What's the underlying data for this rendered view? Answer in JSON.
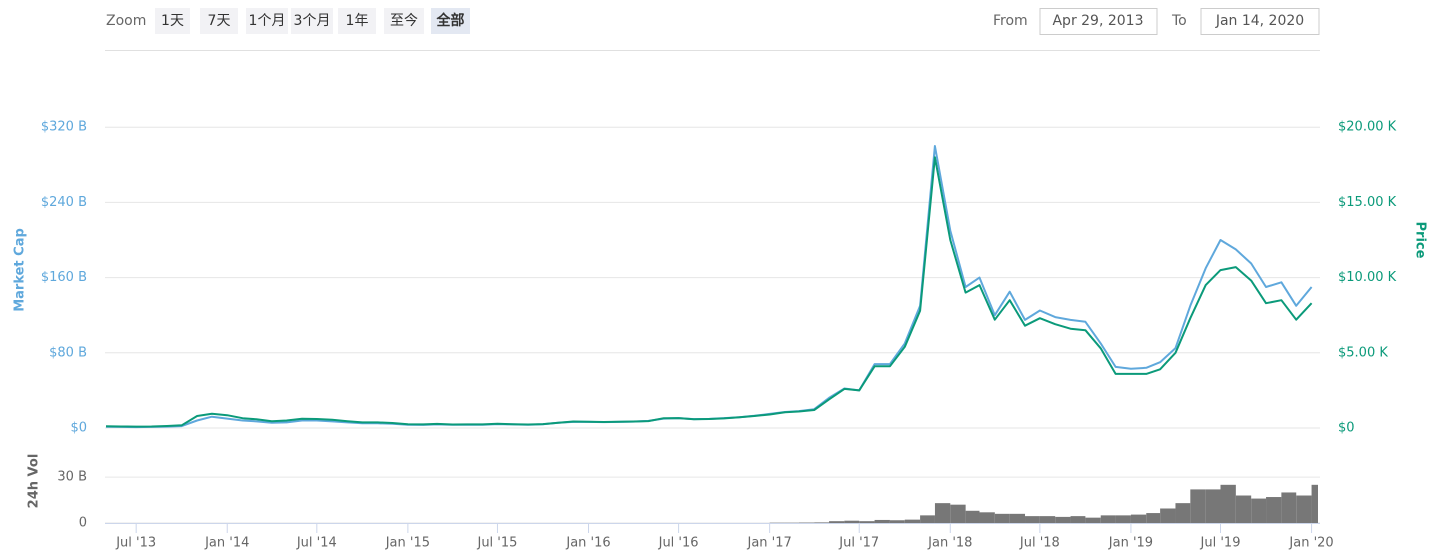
{
  "toolbar": {
    "zoom_label": "Zoom",
    "buttons": [
      "1天",
      "7天",
      "1个月",
      "3个月",
      "1年",
      "至今",
      "全部"
    ],
    "active": 6,
    "from_label": "From",
    "from": "Apr 29, 2013",
    "to_label": "To",
    "to": "Jan 14, 2020"
  },
  "chart_data": [
    {
      "type": "line",
      "ylabel": "Market Cap",
      "y2label": "Price",
      "xlim": [
        "2013-04-29",
        "2020-01-14"
      ],
      "x": [
        "2013-05",
        "2013-06",
        "2013-07",
        "2013-08",
        "2013-09",
        "2013-10",
        "2013-11",
        "2013-12",
        "2014-01",
        "2014-02",
        "2014-03",
        "2014-04",
        "2014-05",
        "2014-06",
        "2014-07",
        "2014-08",
        "2014-09",
        "2014-10",
        "2014-11",
        "2014-12",
        "2015-01",
        "2015-02",
        "2015-03",
        "2015-04",
        "2015-05",
        "2015-06",
        "2015-07",
        "2015-08",
        "2015-09",
        "2015-10",
        "2015-11",
        "2015-12",
        "2016-01",
        "2016-02",
        "2016-03",
        "2016-04",
        "2016-05",
        "2016-06",
        "2016-07",
        "2016-08",
        "2016-09",
        "2016-10",
        "2016-11",
        "2016-12",
        "2017-01",
        "2017-02",
        "2017-03",
        "2017-04",
        "2017-05",
        "2017-06",
        "2017-07",
        "2017-08",
        "2017-09",
        "2017-10",
        "2017-11",
        "2017-12",
        "2018-01",
        "2018-02",
        "2018-03",
        "2018-04",
        "2018-05",
        "2018-06",
        "2018-07",
        "2018-08",
        "2018-09",
        "2018-10",
        "2018-11",
        "2018-12",
        "2019-01",
        "2019-02",
        "2019-03",
        "2019-04",
        "2019-05",
        "2019-06",
        "2019-07",
        "2019-08",
        "2019-09",
        "2019-10",
        "2019-11",
        "2019-12",
        "2020-01"
      ],
      "series": [
        {
          "color": "#5fa8dc",
          "axis": "y",
          "values": [
            1.3,
            1.2,
            1.0,
            1.2,
            1.5,
            2.0,
            8,
            12,
            10,
            8,
            7,
            5.5,
            6,
            8,
            8,
            7,
            6,
            5,
            5,
            4.5,
            3.5,
            3.3,
            3.8,
            3.4,
            3.4,
            3.5,
            4.2,
            3.8,
            3.5,
            4,
            5.5,
            6.5,
            6.5,
            6.3,
            6.5,
            6.8,
            7.5,
            10,
            10.5,
            9.5,
            9.7,
            10.5,
            11.5,
            13,
            15,
            17,
            18,
            20,
            32,
            42,
            40,
            68,
            68,
            90,
            130,
            300,
            210,
            150,
            160,
            120,
            145,
            115,
            125,
            118,
            115,
            113,
            90,
            65,
            63,
            64,
            70,
            85,
            130,
            170,
            200,
            190,
            175,
            150,
            155,
            130,
            150
          ]
        },
        {
          "color": "#0b9a7a",
          "axis": "y2",
          "values": [
            0.12,
            0.1,
            0.09,
            0.1,
            0.13,
            0.18,
            0.8,
            0.95,
            0.85,
            0.65,
            0.58,
            0.45,
            0.5,
            0.62,
            0.6,
            0.55,
            0.45,
            0.37,
            0.37,
            0.33,
            0.25,
            0.24,
            0.27,
            0.23,
            0.24,
            0.24,
            0.28,
            0.25,
            0.23,
            0.26,
            0.35,
            0.43,
            0.41,
            0.4,
            0.41,
            0.43,
            0.46,
            0.65,
            0.66,
            0.58,
            0.6,
            0.64,
            0.72,
            0.8,
            0.9,
            1.05,
            1.1,
            1.2,
            1.9,
            2.6,
            2.5,
            4.1,
            4.1,
            5.4,
            7.8,
            18,
            12.5,
            9,
            9.5,
            7.2,
            8.5,
            6.8,
            7.3,
            6.9,
            6.6,
            6.5,
            5.3,
            3.6,
            3.6,
            3.6,
            3.9,
            5.0,
            7.3,
            9.5,
            10.5,
            10.7,
            9.8,
            8.3,
            8.5,
            7.2,
            8.3
          ]
        }
      ],
      "ylim": [
        0,
        400
      ],
      "yticks": [
        {
          "value": 0,
          "label": "$0"
        },
        {
          "value": 80,
          "label": "$80 B"
        },
        {
          "value": 160,
          "label": "$160 B"
        },
        {
          "value": 240,
          "label": "$240 B"
        },
        {
          "value": 320,
          "label": "$320 B"
        }
      ],
      "y2lim": [
        0,
        25
      ],
      "y2ticks": [
        {
          "value": 0,
          "label": "$0"
        },
        {
          "value": 5,
          "label": "$5.00 K"
        },
        {
          "value": 10,
          "label": "$10.00 K"
        },
        {
          "value": 15,
          "label": "$15.00 K"
        },
        {
          "value": 20,
          "label": "$20.00 K"
        }
      ],
      "grid": true
    },
    {
      "type": "bar",
      "ylabel": "24h Vol",
      "color": "#777777",
      "xlim": [
        "2013-04-29",
        "2020-01-14"
      ],
      "x": [
        "2013-05",
        "2013-06",
        "2013-07",
        "2013-08",
        "2013-09",
        "2013-10",
        "2013-11",
        "2013-12",
        "2014-01",
        "2014-02",
        "2014-03",
        "2014-04",
        "2014-05",
        "2014-06",
        "2014-07",
        "2014-08",
        "2014-09",
        "2014-10",
        "2014-11",
        "2014-12",
        "2015-01",
        "2015-02",
        "2015-03",
        "2015-04",
        "2015-05",
        "2015-06",
        "2015-07",
        "2015-08",
        "2015-09",
        "2015-10",
        "2015-11",
        "2015-12",
        "2016-01",
        "2016-02",
        "2016-03",
        "2016-04",
        "2016-05",
        "2016-06",
        "2016-07",
        "2016-08",
        "2016-09",
        "2016-10",
        "2016-11",
        "2016-12",
        "2017-01",
        "2017-02",
        "2017-03",
        "2017-04",
        "2017-05",
        "2017-06",
        "2017-07",
        "2017-08",
        "2017-09",
        "2017-10",
        "2017-11",
        "2017-12",
        "2018-01",
        "2018-02",
        "2018-03",
        "2018-04",
        "2018-05",
        "2018-06",
        "2018-07",
        "2018-08",
        "2018-09",
        "2018-10",
        "2018-11",
        "2018-12",
        "2019-01",
        "2019-02",
        "2019-03",
        "2019-04",
        "2019-05",
        "2019-06",
        "2019-07",
        "2019-08",
        "2019-09",
        "2019-10",
        "2019-11",
        "2019-12",
        "2020-01"
      ],
      "values": [
        0,
        0,
        0,
        0,
        0,
        0,
        0,
        0,
        0,
        0,
        0,
        0,
        0,
        0,
        0,
        0,
        0,
        0,
        0,
        0,
        0,
        0,
        0,
        0,
        0,
        0,
        0,
        0,
        0,
        0,
        0,
        0,
        0,
        0,
        0,
        0,
        0,
        0,
        0,
        0,
        0,
        0,
        0,
        0,
        0.2,
        0.2,
        0.3,
        0.4,
        1.2,
        1.5,
        1.2,
        2.0,
        1.8,
        2.2,
        5,
        13,
        12,
        8,
        7,
        6,
        6,
        4.5,
        4.5,
        4,
        4.5,
        3.5,
        5,
        5,
        5.5,
        6.5,
        9.5,
        13,
        22,
        22,
        25,
        18,
        16,
        17,
        20,
        18,
        25
      ],
      "ylim": [
        0,
        55
      ],
      "yticks": [
        0,
        {
          "value": 30,
          "label": "30 B"
        }
      ],
      "xticks": [
        {
          "value": "2013-07",
          "label": "Jul '13"
        },
        {
          "value": "2014-01",
          "label": "Jan '14"
        },
        {
          "value": "2014-07",
          "label": "Jul '14"
        },
        {
          "value": "2015-01",
          "label": "Jan '15"
        },
        {
          "value": "2015-07",
          "label": "Jul '15"
        },
        {
          "value": "2016-01",
          "label": "Jan '16"
        },
        {
          "value": "2016-07",
          "label": "Jul '16"
        },
        {
          "value": "2017-01",
          "label": "Jan '17"
        },
        {
          "value": "2017-07",
          "label": "Jul '17"
        },
        {
          "value": "2018-01",
          "label": "Jan '18"
        },
        {
          "value": "2018-07",
          "label": "Jul '18"
        },
        {
          "value": "2019-01",
          "label": "Jan '19"
        },
        {
          "value": "2019-07",
          "label": "Jul '19"
        },
        {
          "value": "2020-01",
          "label": "Jan '20"
        }
      ],
      "grid": true
    }
  ]
}
